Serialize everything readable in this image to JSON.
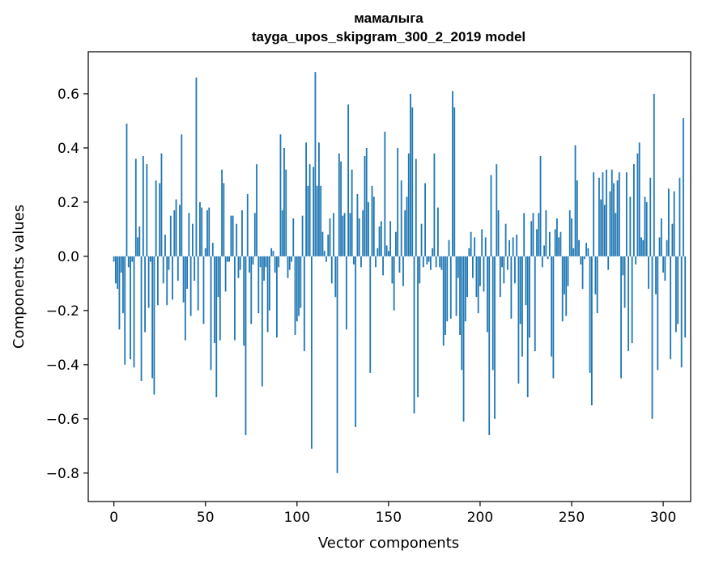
{
  "chart_data": {
    "type": "bar",
    "title": "мамалыга",
    "subtitle": "tayga_upos_skipgram_300_2_2019 model",
    "xlabel": "Vector components",
    "ylabel": "Components values",
    "xlim": [
      -14,
      315
    ],
    "ylim": [
      -0.905,
      0.755
    ],
    "xticks": [
      0,
      50,
      100,
      150,
      200,
      250,
      300
    ],
    "xtick_labels": [
      "0",
      "50",
      "100",
      "150",
      "200",
      "250",
      "300"
    ],
    "yticks": [
      -0.8,
      -0.6,
      -0.4,
      -0.2,
      0.0,
      0.2,
      0.4,
      0.6
    ],
    "ytick_labels": [
      "−0.8",
      "−0.6",
      "−0.4",
      "−0.2",
      "0.0",
      "0.2",
      "0.4",
      "0.6"
    ],
    "bar_color": "#1f77b4",
    "grid": false,
    "values": [
      -0.02,
      -0.1,
      -0.12,
      -0.27,
      -0.06,
      -0.21,
      -0.4,
      0.49,
      -0.04,
      -0.38,
      -0.02,
      -0.41,
      0.36,
      0.07,
      0.11,
      -0.46,
      0.37,
      -0.28,
      0.34,
      -0.19,
      -0.02,
      -0.45,
      -0.51,
      0.28,
      -0.18,
      0.27,
      0.38,
      -0.1,
      0.08,
      -0.18,
      -0.05,
      0.15,
      -0.16,
      0.17,
      0.21,
      -0.09,
      0.19,
      0.45,
      -0.17,
      -0.31,
      -0.12,
      0.16,
      -0.22,
      0.12,
      -0.09,
      0.66,
      -0.2,
      0.2,
      0.18,
      -0.25,
      0.03,
      0.17,
      0.18,
      -0.42,
      0.05,
      -0.32,
      -0.52,
      -0.15,
      -0.31,
      0.32,
      0.27,
      -0.13,
      -0.02,
      -0.02,
      0.15,
      0.15,
      -0.31,
      0.12,
      -0.08,
      -0.05,
      0.17,
      -0.33,
      -0.66,
      0.23,
      -0.06,
      -0.25,
      -0.03,
      0.16,
      0.34,
      -0.21,
      -0.04,
      -0.48,
      -0.09,
      -0.04,
      -0.28,
      -0.2,
      0.03,
      0.02,
      -0.06,
      -0.3,
      -0.04,
      0.45,
      0.17,
      0.4,
      0.32,
      -0.08,
      -0.05,
      -0.02,
      0.14,
      -0.29,
      -0.24,
      -0.22,
      -0.19,
      0.15,
      -0.35,
      0.42,
      0.26,
      0.34,
      -0.71,
      0.33,
      0.68,
      0.26,
      0.42,
      0.26,
      0.09,
      0.02,
      -0.02,
      0.08,
      0.14,
      -0.1,
      0.16,
      -0.15,
      -0.8,
      0.38,
      0.35,
      0.15,
      0.16,
      -0.27,
      0.56,
      0.16,
      0.32,
      -0.03,
      -0.63,
      0.23,
      0.14,
      -0.04,
      0.17,
      0.37,
      0.4,
      0.2,
      -0.43,
      0.26,
      0.22,
      -0.04,
      0.03,
      0.11,
      0.13,
      -0.07,
      0.46,
      0.04,
      0.02,
      0.13,
      -0.1,
      -0.2,
      0.09,
      0.4,
      -0.06,
      0.28,
      -0.11,
      0.17,
      0.22,
      0.38,
      0.6,
      0.55,
      -0.58,
      0.36,
      -0.52,
      -0.1,
      0.12,
      -0.04,
      0.27,
      -0.03,
      -0.02,
      -0.05,
      0.03,
      0.38,
      -0.04,
      0.18,
      -0.04,
      -0.05,
      -0.33,
      -0.29,
      -0.24,
      0.06,
      -0.23,
      0.61,
      0.55,
      -0.22,
      -0.08,
      -0.29,
      -0.42,
      -0.61,
      -0.24,
      -0.15,
      0.03,
      0.09,
      -0.08,
      0.07,
      -0.15,
      -0.21,
      -0.11,
      0.1,
      -0.13,
      0.07,
      -0.28,
      -0.66,
      0.3,
      -0.42,
      -0.6,
      0.34,
      0.17,
      -0.15,
      -0.04,
      -0.1,
      0.12,
      -0.05,
      0.06,
      -0.23,
      0.07,
      -0.1,
      0.08,
      -0.47,
      -0.25,
      -0.37,
      0.16,
      -0.18,
      -0.52,
      -0.3,
      0.13,
      0.16,
      -0.35,
      0.1,
      0.16,
      0.37,
      -0.04,
      0.04,
      0.17,
      -0.01,
      0.09,
      -0.37,
      -0.45,
      0.1,
      0.14,
      0.07,
      0.09,
      -0.24,
      -0.14,
      -0.22,
      -0.11,
      0.17,
      0.14,
      0.03,
      0.41,
      0.28,
      0.06,
      -0.03,
      -0.12,
      -0.01,
      0.05,
      0.03,
      -0.43,
      -0.55,
      0.31,
      -0.14,
      -0.21,
      0.29,
      0.21,
      0.31,
      0.19,
      0.32,
      -0.05,
      0.24,
      0.32,
      0.27,
      0.16,
      0.28,
      0.31,
      -0.45,
      -0.07,
      -0.19,
      0.31,
      -0.35,
      0.22,
      -0.32,
      0.34,
      -0.03,
      0.38,
      0.42,
      0.07,
      0.06,
      0.22,
      0.2,
      -0.12,
      0.29,
      -0.6,
      0.6,
      -0.14,
      -0.42,
      0.07,
      0.14,
      -0.06,
      -0.09,
      0.06,
      0.25,
      -0.38,
      0.12,
      0.24,
      -0.28,
      -0.25,
      0.29,
      -0.41,
      0.51,
      -0.3
    ]
  }
}
